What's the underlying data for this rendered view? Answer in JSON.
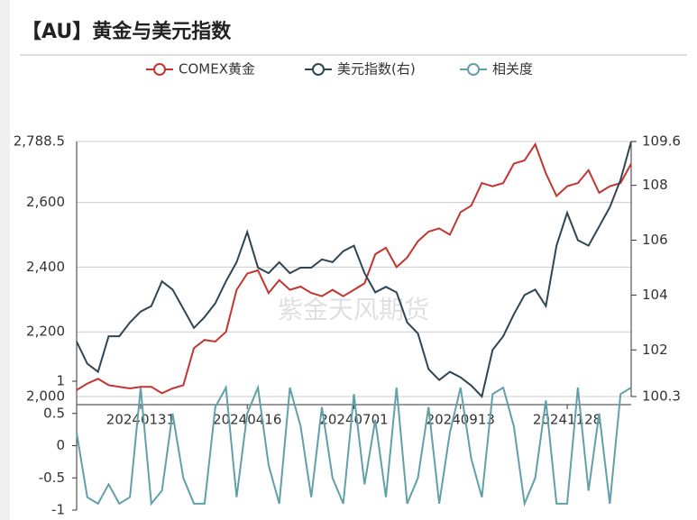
{
  "chart_data": {
    "type": "line",
    "title": "【AU】黄金与美元指数",
    "watermark": "紫金天风期货",
    "categories": [
      null,
      null,
      null,
      null,
      null,
      null,
      "20240131",
      null,
      null,
      null,
      null,
      null,
      null,
      null,
      null,
      null,
      "20240416",
      null,
      null,
      null,
      null,
      null,
      null,
      null,
      null,
      null,
      "20240701",
      null,
      null,
      null,
      null,
      null,
      null,
      null,
      null,
      null,
      "20240913",
      null,
      null,
      null,
      null,
      null,
      null,
      null,
      null,
      null,
      "20241128",
      null,
      null,
      null,
      null,
      null,
      null
    ],
    "series": [
      {
        "name": "COMEX黄金",
        "color": "#c23531",
        "values": [
          2020,
          2040,
          2055,
          2035,
          2030,
          2025,
          2030,
          2030,
          2010,
          2025,
          2035,
          2150,
          2175,
          2170,
          2200,
          2330,
          2380,
          2390,
          2320,
          2360,
          2330,
          2340,
          2320,
          2310,
          2330,
          2310,
          2330,
          2350,
          2440,
          2460,
          2400,
          2430,
          2480,
          2510,
          2520,
          2500,
          2570,
          2590,
          2660,
          2650,
          2660,
          2720,
          2730,
          2780,
          2690,
          2620,
          2650,
          2660,
          2700,
          2630,
          2650,
          2660,
          2720
        ]
      },
      {
        "name": "美元指数(右)",
        "color": "#2f4554",
        "axis": "y2",
        "values": [
          102.3,
          101.5,
          101.2,
          102.5,
          102.5,
          103.0,
          103.4,
          103.6,
          104.5,
          104.2,
          103.5,
          102.8,
          103.2,
          103.7,
          104.5,
          105.2,
          106.3,
          105.0,
          104.8,
          105.2,
          104.8,
          105.0,
          105.0,
          105.3,
          105.2,
          105.6,
          105.8,
          104.8,
          104.1,
          104.3,
          104.1,
          103.0,
          102.6,
          101.3,
          100.9,
          101.2,
          101.0,
          100.7,
          100.3,
          102.0,
          102.5,
          103.3,
          104.0,
          104.2,
          103.6,
          105.8,
          107.0,
          106.0,
          105.8,
          106.5,
          107.2,
          108.2,
          109.6
        ]
      },
      {
        "name": "相关度",
        "color": "#61a0a8",
        "axis": "y3",
        "values": [
          0.2,
          -0.8,
          -0.9,
          -0.6,
          -0.9,
          -0.8,
          0.9,
          -0.9,
          -0.7,
          0.5,
          -0.5,
          -0.9,
          -0.9,
          0.6,
          0.9,
          -0.8,
          0.5,
          0.9,
          -0.3,
          -0.9,
          0.9,
          0.3,
          -0.8,
          0.6,
          -0.5,
          -0.9,
          0.8,
          -0.6,
          0.4,
          -0.8,
          0.9,
          -0.9,
          -0.5,
          0.6,
          -0.9,
          0.2,
          0.9,
          -0.2,
          -0.8,
          0.8,
          0.9,
          0.3,
          -0.9,
          -0.5,
          0.7,
          -0.9,
          -0.9,
          0.9,
          -0.7,
          0.5,
          -0.9,
          0.8,
          0.9
        ]
      }
    ],
    "ylim": [
      2000,
      2788.5
    ],
    "yticks": [
      {
        "value": 2000,
        "label": "2,000"
      },
      {
        "value": 2200,
        "label": "2,200"
      },
      {
        "value": 2400,
        "label": "2,400"
      },
      {
        "value": 2600,
        "label": "2,600"
      },
      {
        "value": 2788.5,
        "label": "2,788.5"
      }
    ],
    "y2lim": [
      100.3,
      109.6
    ],
    "y2ticks": [
      100.3,
      102,
      104,
      106,
      108,
      109.6
    ],
    "y3lim": [
      -1,
      1
    ],
    "y3ticks": [
      -1,
      -0.5,
      0,
      0.5,
      1
    ],
    "grid": true
  }
}
